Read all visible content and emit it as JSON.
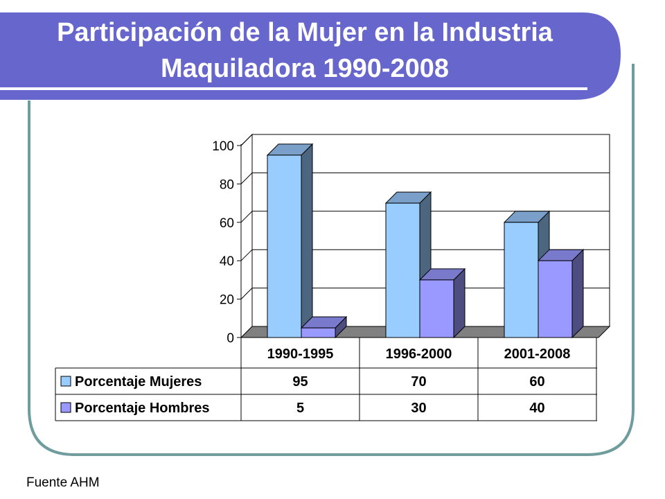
{
  "slide": {
    "title_line1": "Participación de la Mujer en la Industria",
    "title_line2": "Maquiladora 1990-2008",
    "source": "Fuente AHM",
    "colors": {
      "title_band": "#6666CC",
      "frame_border": "#6F9C9C",
      "title_underline": "#FFFFFF"
    }
  },
  "chart_data": {
    "type": "bar",
    "title": "",
    "xlabel": "",
    "ylabel": "",
    "categories": [
      "1990-1995",
      "1996-2000",
      "2001-2008"
    ],
    "series": [
      {
        "name": "Porcentaje Mujeres",
        "values": [
          95,
          70,
          60
        ],
        "color": "#99CCFF",
        "side_color": "#4D6680",
        "top_color": "#7A9FC9"
      },
      {
        "name": "Porcentaje Hombres",
        "values": [
          5,
          30,
          40
        ],
        "color": "#9999FF",
        "side_color": "#4D4D80",
        "top_color": "#7A7ACC"
      }
    ],
    "ylim": [
      0,
      100
    ],
    "yticks": [
      0,
      20,
      40,
      60,
      80,
      100
    ],
    "grid": true,
    "three_d": true,
    "legend": "data-table-below"
  }
}
